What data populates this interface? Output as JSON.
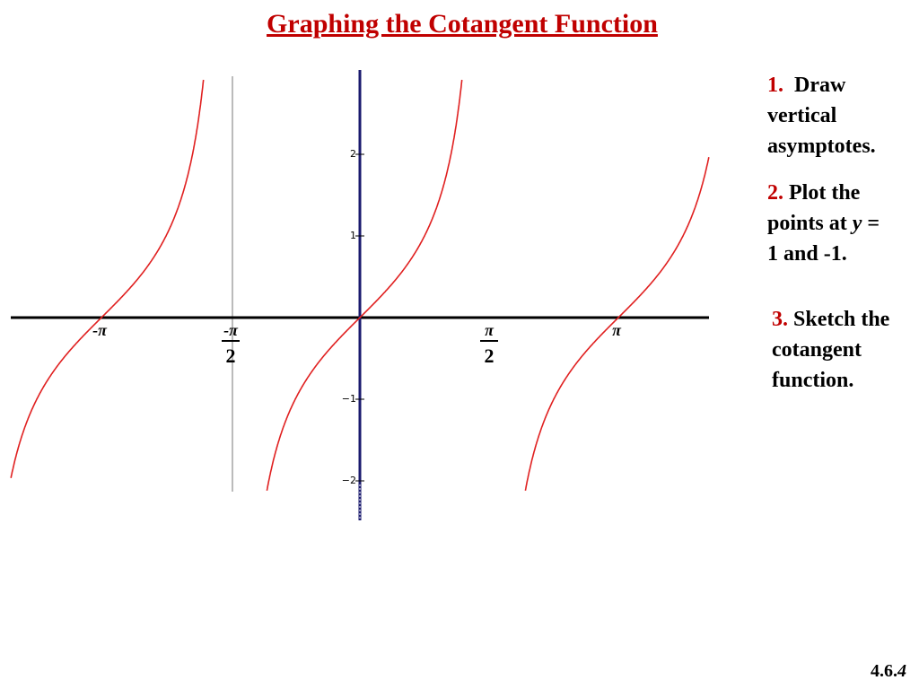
{
  "header": {
    "title": "Graphing the Cotangent Function"
  },
  "graph": {
    "y_labels": [
      "2",
      "1",
      "−1",
      "−2"
    ],
    "x_labels": [
      {
        "num": "-π"
      },
      {
        "num": "-π",
        "den": "2"
      },
      {
        "num": "π",
        "den": "2"
      },
      {
        "num": "π"
      }
    ]
  },
  "steps": [
    {
      "number": "1.",
      "parts": [
        "Draw vertical asymptotes."
      ]
    },
    {
      "number": "2.",
      "parts": [
        "Plot the points at",
        "y",
        "= 1 and -1."
      ]
    },
    {
      "number": "3.",
      "parts": [
        "Sketch the cotangent function."
      ]
    }
  ],
  "footer": {
    "slide_number": [
      "4.6.",
      "4"
    ]
  }
}
